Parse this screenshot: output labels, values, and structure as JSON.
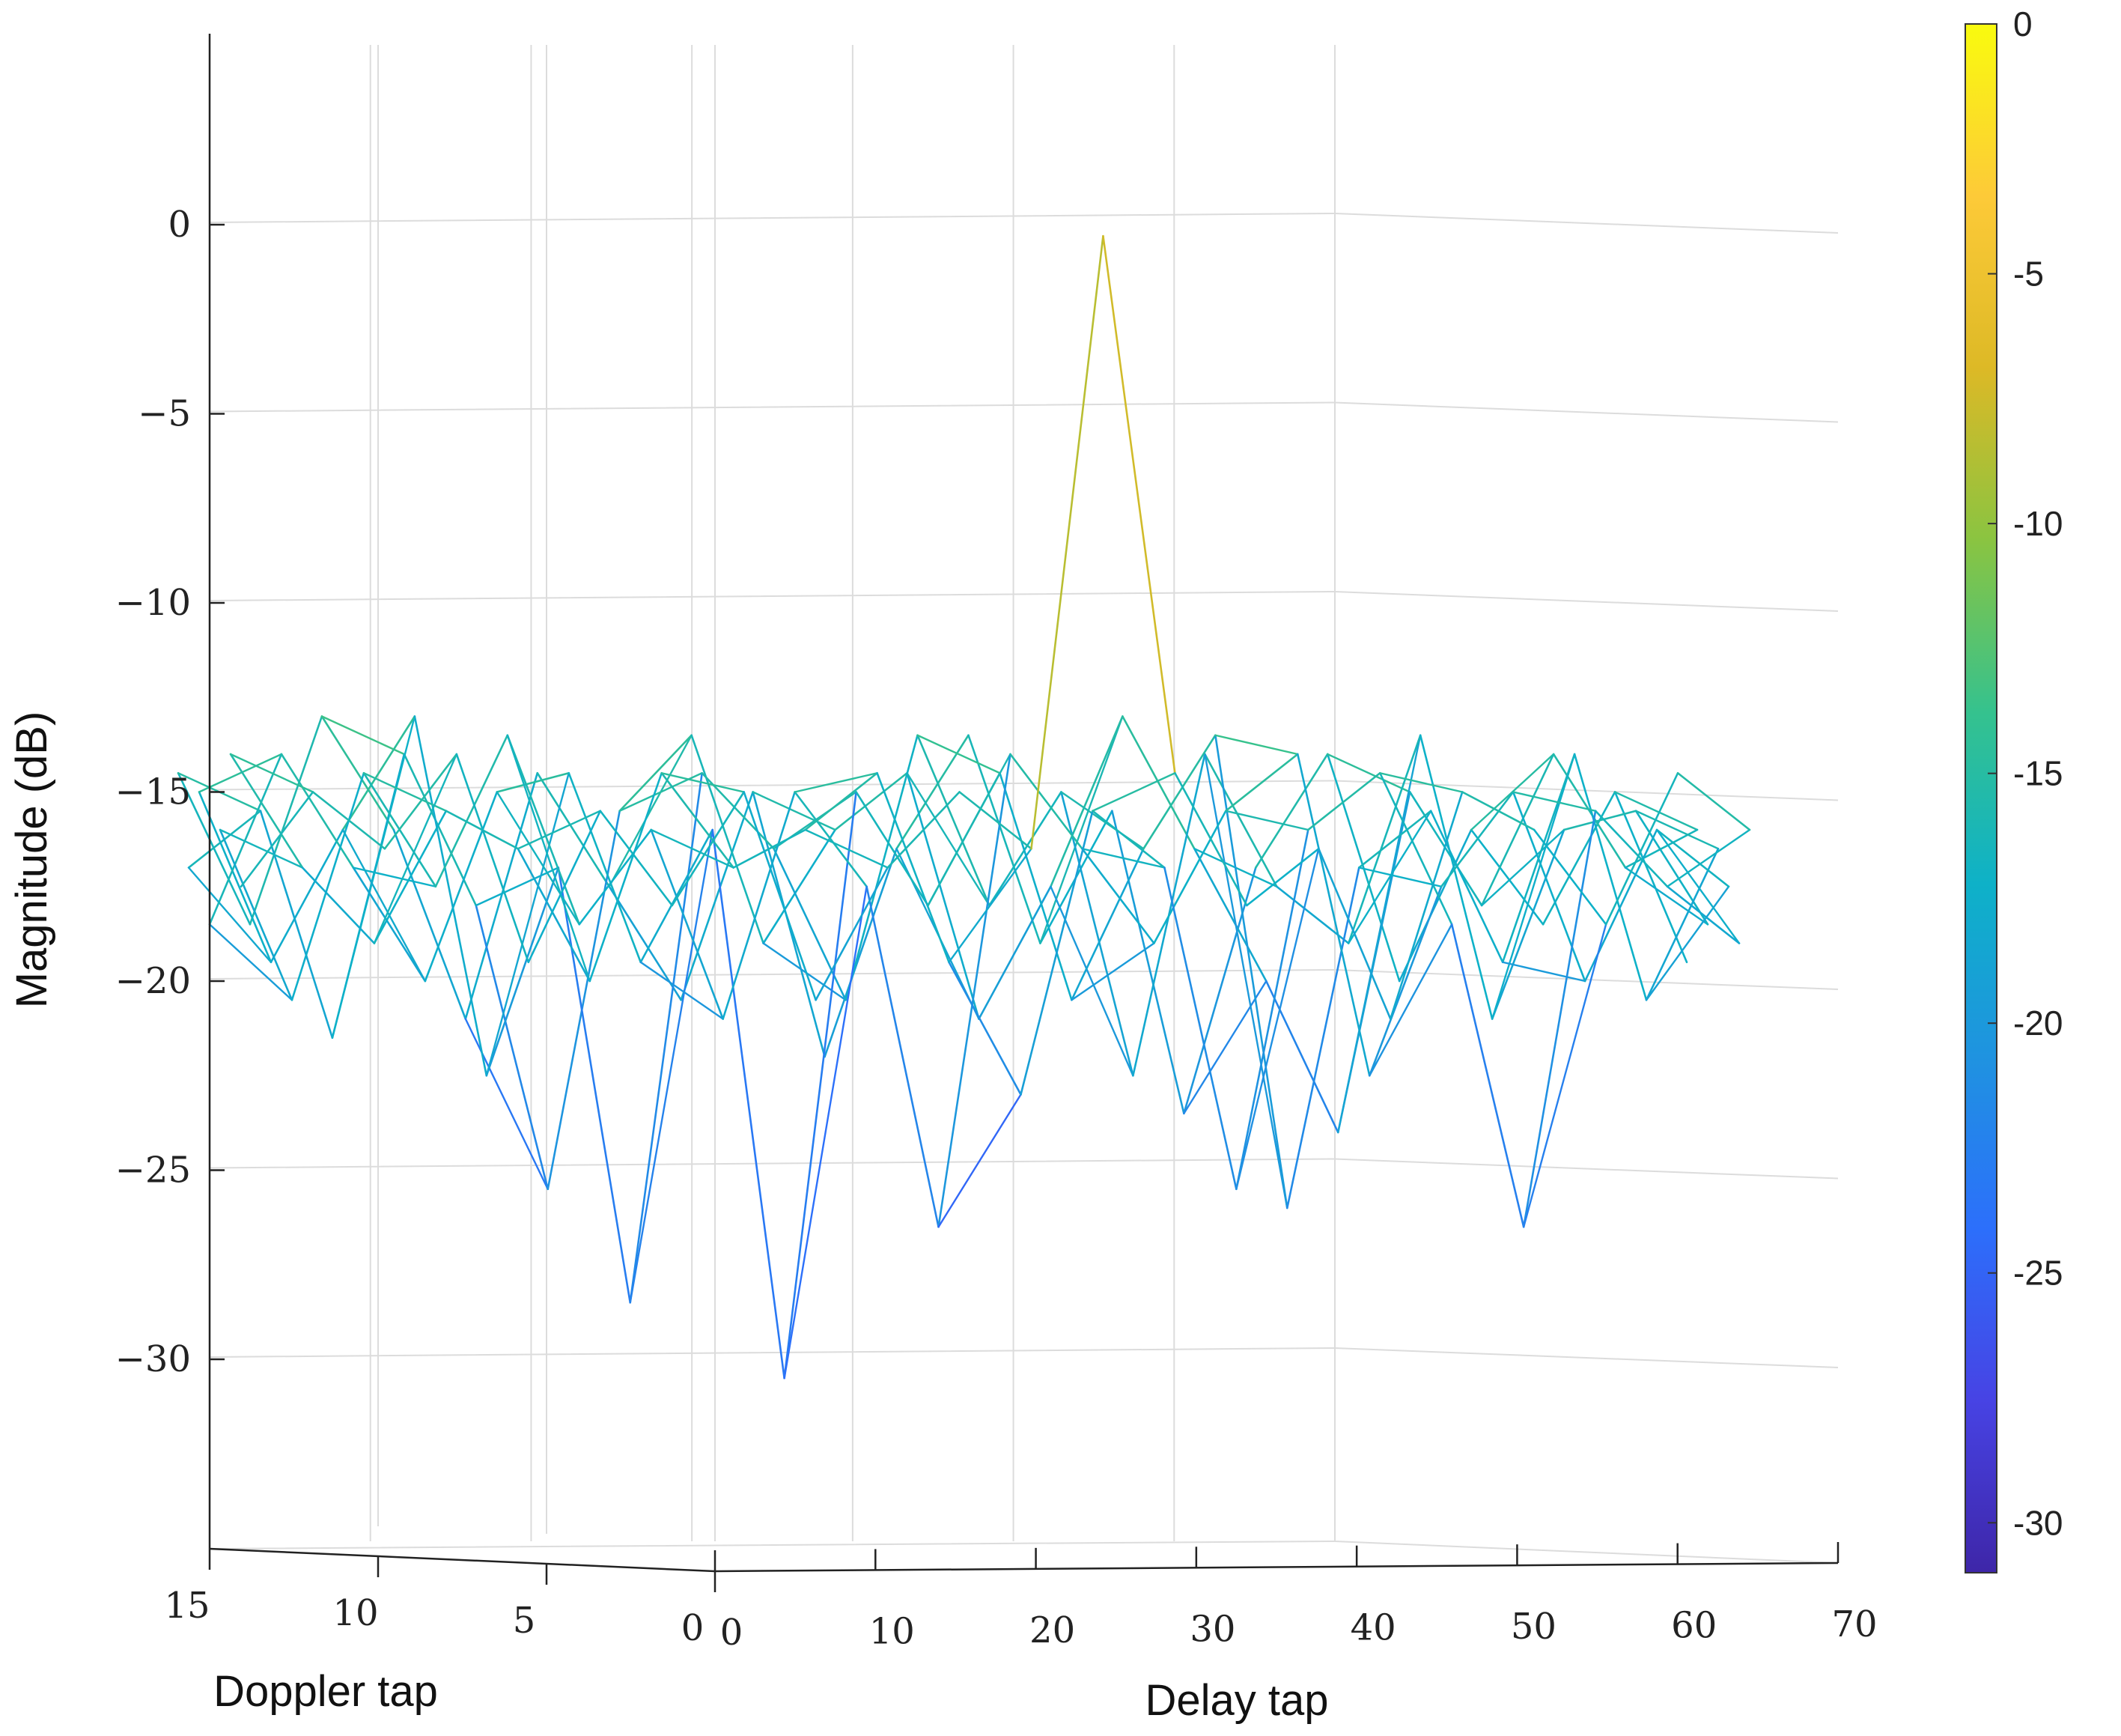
{
  "chart_data": {
    "type": "surface-mesh-3d",
    "title": "",
    "xlabel": "Doppler tap",
    "ylabel": "Delay tap",
    "zlabel": "Magnitude (dB)",
    "doppler_axis": {
      "range": [
        0,
        15
      ],
      "ticks": [
        15,
        10,
        5,
        0
      ],
      "tick_labels": [
        "15",
        "10",
        "5",
        "0"
      ]
    },
    "delay_axis": {
      "range": [
        0,
        70
      ],
      "ticks": [
        0,
        10,
        20,
        30,
        40,
        50,
        60,
        70
      ],
      "tick_labels": [
        "0",
        "10",
        "20",
        "30",
        "40",
        "50",
        "60",
        "70"
      ]
    },
    "z_axis": {
      "range": [
        -35,
        5
      ],
      "ticks": [
        0,
        -5,
        -10,
        -15,
        -20,
        -25,
        -30
      ],
      "tick_labels": [
        "0",
        "−5",
        "−10",
        "−15",
        "−20",
        "−25",
        "−30"
      ]
    },
    "grid": true,
    "colorbar": {
      "range": [
        -31,
        0
      ],
      "ticks": [
        0,
        -5,
        -10,
        -15,
        -20,
        -25,
        -30
      ],
      "tick_labels": [
        "0",
        "-5",
        "-10",
        "-15",
        "-20",
        "-25",
        "-30"
      ],
      "colormap": "parula",
      "colors": [
        "#3e26a8",
        "#4743e4",
        "#2c6ffb",
        "#1f93e0",
        "#0eb1c8",
        "#35c28e",
        "#8ac441",
        "#ddb926",
        "#fdca38",
        "#f9fb0e"
      ],
      "placement": "right"
    },
    "annotations": {
      "peak_magnitude_db": -0.3
    },
    "series": [
      {
        "delay": [
          0,
          3,
          6,
          9,
          12,
          15,
          18,
          21,
          24,
          27,
          30,
          33,
          36,
          39,
          42,
          45,
          48,
          51,
          54,
          57,
          60,
          63
        ],
        "magnitude": [
          -14.5,
          -18.5,
          -13.0,
          -16.0,
          -21.0,
          -14.5,
          -17.5,
          -20.5,
          -15.0,
          -22.0,
          -16.5,
          -13.5,
          -19.0,
          -15.5,
          -23.5,
          -17.0,
          -14.0,
          -20.0,
          -16.0,
          -18.5,
          -15.0,
          -19.5
        ]
      },
      {
        "delay": [
          0,
          3,
          6,
          9,
          12,
          15,
          18,
          21,
          24,
          27,
          30,
          33,
          36,
          39,
          42,
          45,
          48,
          51,
          54,
          57,
          60,
          63
        ],
        "magnitude": [
          -17.0,
          -15.5,
          -21.5,
          -14.0,
          -18.0,
          -25.5,
          -15.5,
          -13.5,
          -19.0,
          -16.0,
          -14.5,
          -21.0,
          -17.5,
          -13.0,
          -16.5,
          -20.0,
          -24.0,
          -15.0,
          -18.0,
          -14.0,
          -17.0,
          -16.0
        ]
      },
      {
        "delay": [
          0,
          3,
          6,
          9,
          12,
          15,
          18,
          21,
          24,
          27,
          30,
          33,
          36,
          39,
          42,
          45,
          48,
          51,
          54,
          57,
          60,
          63
        ],
        "magnitude": [
          -15.0,
          -19.5,
          -16.0,
          -13.0,
          -22.5,
          -17.0,
          -28.5,
          -14.5,
          -16.5,
          -20.5,
          -13.5,
          -18.0,
          -15.0,
          -22.5,
          -14.0,
          -17.5,
          -19.0,
          -13.5,
          -21.0,
          -16.0,
          -15.5,
          -18.5
        ]
      },
      {
        "delay": [
          0,
          3,
          6,
          9,
          12,
          15,
          18,
          21,
          24,
          27,
          30,
          33,
          36,
          39,
          42,
          45,
          48,
          51,
          54,
          57,
          60,
          63
        ],
        "magnitude": [
          -18.5,
          -14.0,
          -17.0,
          -20.0,
          -15.0,
          -14.5,
          -19.5,
          -16.0,
          -30.5,
          -15.0,
          -18.0,
          -14.5,
          -20.5,
          -16.5,
          -13.5,
          -26.0,
          -17.0,
          -15.5,
          -19.5,
          -14.0,
          -20.5,
          -16.5
        ]
      },
      {
        "delay": [
          0,
          3,
          6,
          9,
          12,
          15,
          18,
          21,
          24,
          27,
          30,
          33,
          36,
          39,
          42,
          45,
          48,
          51,
          54,
          57,
          60,
          63
        ],
        "magnitude": [
          -16.0,
          -20.5,
          -14.5,
          -17.5,
          -13.5,
          -18.5,
          -16.0,
          -21.0,
          -15.0,
          -17.5,
          -26.5,
          -14.0,
          -16.5,
          -19.0,
          -15.5,
          -14.0,
          -22.5,
          -17.5,
          -15.0,
          -20.0,
          -16.0,
          -17.5
        ]
      },
      {
        "delay": [
          0,
          3,
          6,
          9,
          12,
          15,
          18,
          21,
          24,
          27,
          30,
          33,
          36,
          39,
          42,
          45,
          48,
          51,
          54,
          57,
          60,
          63
        ],
        "magnitude": [
          -14.0,
          -17.0,
          -19.0,
          -15.5,
          -16.5,
          -20.0,
          -14.5,
          -17.0,
          -16.0,
          -14.5,
          -19.5,
          -23.0,
          -15.5,
          -17.0,
          -25.5,
          -16.0,
          -14.5,
          -18.5,
          -26.5,
          -15.5,
          -17.5,
          -19.0
        ]
      },
      {
        "delay": [
          0,
          3,
          6,
          9,
          12,
          15,
          18,
          21,
          24,
          27,
          30,
          33,
          36,
          39,
          42,
          45,
          48,
          51,
          54,
          57,
          60,
          63
        ],
        "magnitude": [
          -17.5,
          -15.0,
          -16.5,
          -14.0,
          -19.5,
          -15.5,
          -18.0,
          -15.0,
          -20.5,
          -17.0,
          -15.0,
          -16.5,
          -0.3,
          -14.5,
          -18.0,
          -16.5,
          -21.0,
          -15.0,
          -16.0,
          -18.5,
          -14.5,
          -16.0
        ]
      }
    ]
  }
}
